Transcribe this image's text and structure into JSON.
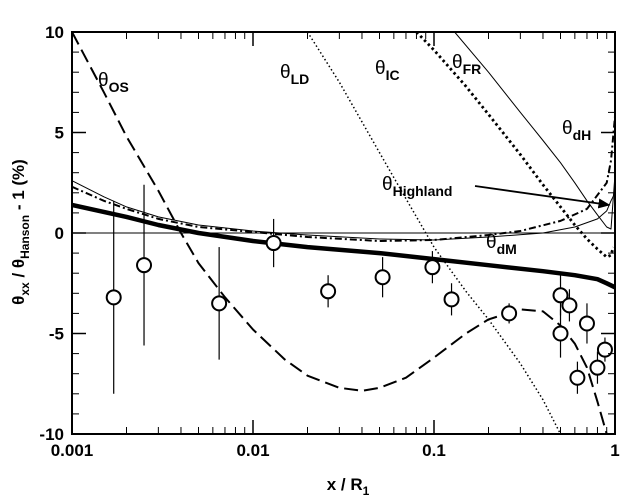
{
  "chart_data": {
    "type": "line",
    "xscale": "log",
    "xlim": [
      0.001,
      1
    ],
    "ylim": [
      -10,
      10
    ],
    "grid": false,
    "legend": "none",
    "x_ticks": [
      {
        "value": 0.001,
        "label": "0.001"
      },
      {
        "value": 0.01,
        "label": "0.01"
      },
      {
        "value": 0.1,
        "label": "0.1"
      },
      {
        "value": 1,
        "label": "1"
      }
    ],
    "y_ticks": [
      {
        "value": -10,
        "label": "-10"
      },
      {
        "value": -5,
        "label": "-5"
      },
      {
        "value": 0,
        "label": "0"
      },
      {
        "value": 5,
        "label": "5"
      },
      {
        "value": 10,
        "label": "10"
      }
    ],
    "xlabel": {
      "main": "x / R",
      "sub": "1"
    },
    "ylabel": {
      "p1": "θ",
      "s1": "xx",
      "p2": " / θ",
      "s2": "Hanson",
      "p3": "  - 1   (%)"
    },
    "series": [
      {
        "id": "os",
        "label_main": "θ",
        "label_sub": "OS",
        "style": "dashed-long",
        "points": [
          [
            0.001,
            10
          ],
          [
            0.0015,
            7
          ],
          [
            0.002,
            4.8
          ],
          [
            0.003,
            2.1
          ],
          [
            0.004,
            0
          ],
          [
            0.005,
            -1.5
          ],
          [
            0.007,
            -3.2
          ],
          [
            0.01,
            -4.8
          ],
          [
            0.015,
            -6.3
          ],
          [
            0.02,
            -7.1
          ],
          [
            0.03,
            -7.7
          ],
          [
            0.04,
            -7.85
          ],
          [
            0.05,
            -7.7
          ],
          [
            0.07,
            -7.2
          ],
          [
            0.1,
            -6.2
          ],
          [
            0.15,
            -5
          ],
          [
            0.2,
            -4.3
          ],
          [
            0.3,
            -3.8
          ],
          [
            0.4,
            -3.9
          ],
          [
            0.5,
            -4.6
          ],
          [
            0.6,
            -5.5
          ],
          [
            0.7,
            -6.7
          ],
          [
            0.8,
            -8.4
          ],
          [
            0.9,
            -10
          ]
        ]
      },
      {
        "id": "ld",
        "label_main": "θ",
        "label_sub": "LD",
        "style": "dotted-fine",
        "points": [
          [
            0.02,
            10
          ],
          [
            0.03,
            7.5
          ],
          [
            0.05,
            4
          ],
          [
            0.07,
            1.7
          ],
          [
            0.1,
            -0.7
          ],
          [
            0.15,
            -2.9
          ],
          [
            0.2,
            -4.3
          ],
          [
            0.3,
            -6.5
          ],
          [
            0.4,
            -8.3
          ],
          [
            0.5,
            -10
          ]
        ]
      },
      {
        "id": "ic",
        "label_main": "θ",
        "label_sub": "IC",
        "style": "dotted-bold",
        "points": [
          [
            0.08,
            10
          ],
          [
            0.1,
            9.1
          ],
          [
            0.15,
            7.3
          ],
          [
            0.2,
            5.9
          ],
          [
            0.3,
            3.9
          ],
          [
            0.4,
            2.4
          ],
          [
            0.5,
            1.3
          ],
          [
            0.6,
            0.4
          ],
          [
            0.7,
            -0.3
          ],
          [
            0.8,
            -0.8
          ],
          [
            0.9,
            -1.2
          ],
          [
            0.95,
            -1.1
          ],
          [
            0.98,
            -0.7
          ]
        ]
      },
      {
        "id": "fr",
        "label_main": "θ",
        "label_sub": "FR",
        "style": "solid-thin",
        "points": [
          [
            0.13,
            10
          ],
          [
            0.2,
            8
          ],
          [
            0.3,
            6
          ],
          [
            0.4,
            4.6
          ],
          [
            0.5,
            3.5
          ],
          [
            0.6,
            2.5
          ],
          [
            0.7,
            1.6
          ],
          [
            0.8,
            0.9
          ],
          [
            0.9,
            0.3
          ],
          [
            0.95,
            0.2
          ],
          [
            1,
            2.9
          ]
        ]
      },
      {
        "id": "dh",
        "label_main": "θ",
        "label_sub": "dH",
        "style": "dash-dot",
        "points": [
          [
            0.001,
            2.3
          ],
          [
            0.0015,
            1.6
          ],
          [
            0.002,
            1.2
          ],
          [
            0.003,
            0.7
          ],
          [
            0.005,
            0.3
          ],
          [
            0.01,
            0.05
          ],
          [
            0.02,
            -0.2
          ],
          [
            0.05,
            -0.4
          ],
          [
            0.1,
            -0.35
          ],
          [
            0.2,
            -0.1
          ],
          [
            0.3,
            0.1
          ],
          [
            0.5,
            0.6
          ],
          [
            0.7,
            1.2
          ],
          [
            0.9,
            2.5
          ],
          [
            0.95,
            3.6
          ],
          [
            1,
            5.8
          ]
        ]
      },
      {
        "id": "highland",
        "label_main": "θ",
        "label_sub": "Highland",
        "style": "solid-thin",
        "points": [
          [
            0.001,
            2.6
          ],
          [
            0.0015,
            1.8
          ],
          [
            0.002,
            1.3
          ],
          [
            0.003,
            0.8
          ],
          [
            0.005,
            0.4
          ],
          [
            0.01,
            0.1
          ],
          [
            0.02,
            -0.1
          ],
          [
            0.05,
            -0.3
          ],
          [
            0.1,
            -0.35
          ],
          [
            0.2,
            -0.2
          ],
          [
            0.4,
            0
          ],
          [
            0.6,
            0.3
          ],
          [
            0.8,
            0.7
          ],
          [
            0.9,
            1.1
          ],
          [
            0.95,
            1.6
          ],
          [
            1,
            2.0
          ]
        ]
      },
      {
        "id": "dm",
        "label_main": "θ",
        "label_sub": "dM",
        "style": "solid-thick",
        "points": [
          [
            0.001,
            1.4
          ],
          [
            0.002,
            0.8
          ],
          [
            0.003,
            0.4
          ],
          [
            0.005,
            0
          ],
          [
            0.01,
            -0.4
          ],
          [
            0.02,
            -0.7
          ],
          [
            0.05,
            -1.0
          ],
          [
            0.1,
            -1.3
          ],
          [
            0.2,
            -1.6
          ],
          [
            0.4,
            -1.9
          ],
          [
            0.6,
            -2.1
          ],
          [
            0.8,
            -2.3
          ],
          [
            0.9,
            -2.5
          ],
          [
            1,
            -2.7
          ]
        ]
      }
    ],
    "measurements": [
      {
        "x": 0.0017,
        "y": -3.2,
        "err": 4.8
      },
      {
        "x": 0.0025,
        "y": -1.6,
        "err": 4.0
      },
      {
        "x": 0.0065,
        "y": -3.5,
        "err": 2.8
      },
      {
        "x": 0.013,
        "y": -0.5,
        "err": 1.2
      },
      {
        "x": 0.026,
        "y": -2.9,
        "err": 0.8
      },
      {
        "x": 0.052,
        "y": -2.2,
        "err": 1.0
      },
      {
        "x": 0.098,
        "y": -1.7,
        "err": 0.8
      },
      {
        "x": 0.125,
        "y": -3.3,
        "err": 0.8
      },
      {
        "x": 0.26,
        "y": -4.0,
        "err": 0.5
      },
      {
        "x": 0.5,
        "y": -3.1,
        "err": 1.0
      },
      {
        "x": 0.5,
        "y": -5.0,
        "err": 1.2
      },
      {
        "x": 0.56,
        "y": -3.6,
        "err": 0.8
      },
      {
        "x": 0.62,
        "y": -7.2,
        "err": 0.8
      },
      {
        "x": 0.7,
        "y": -4.5,
        "err": 1.0
      },
      {
        "x": 0.8,
        "y": -6.7,
        "err": 0.8
      },
      {
        "x": 0.88,
        "y": -5.8,
        "err": 0.6
      }
    ],
    "annotation": {
      "series": "highland",
      "text_main": "θ",
      "text_sub": "Highland",
      "arrow_to": [
        0.92,
        1.4
      ]
    }
  }
}
